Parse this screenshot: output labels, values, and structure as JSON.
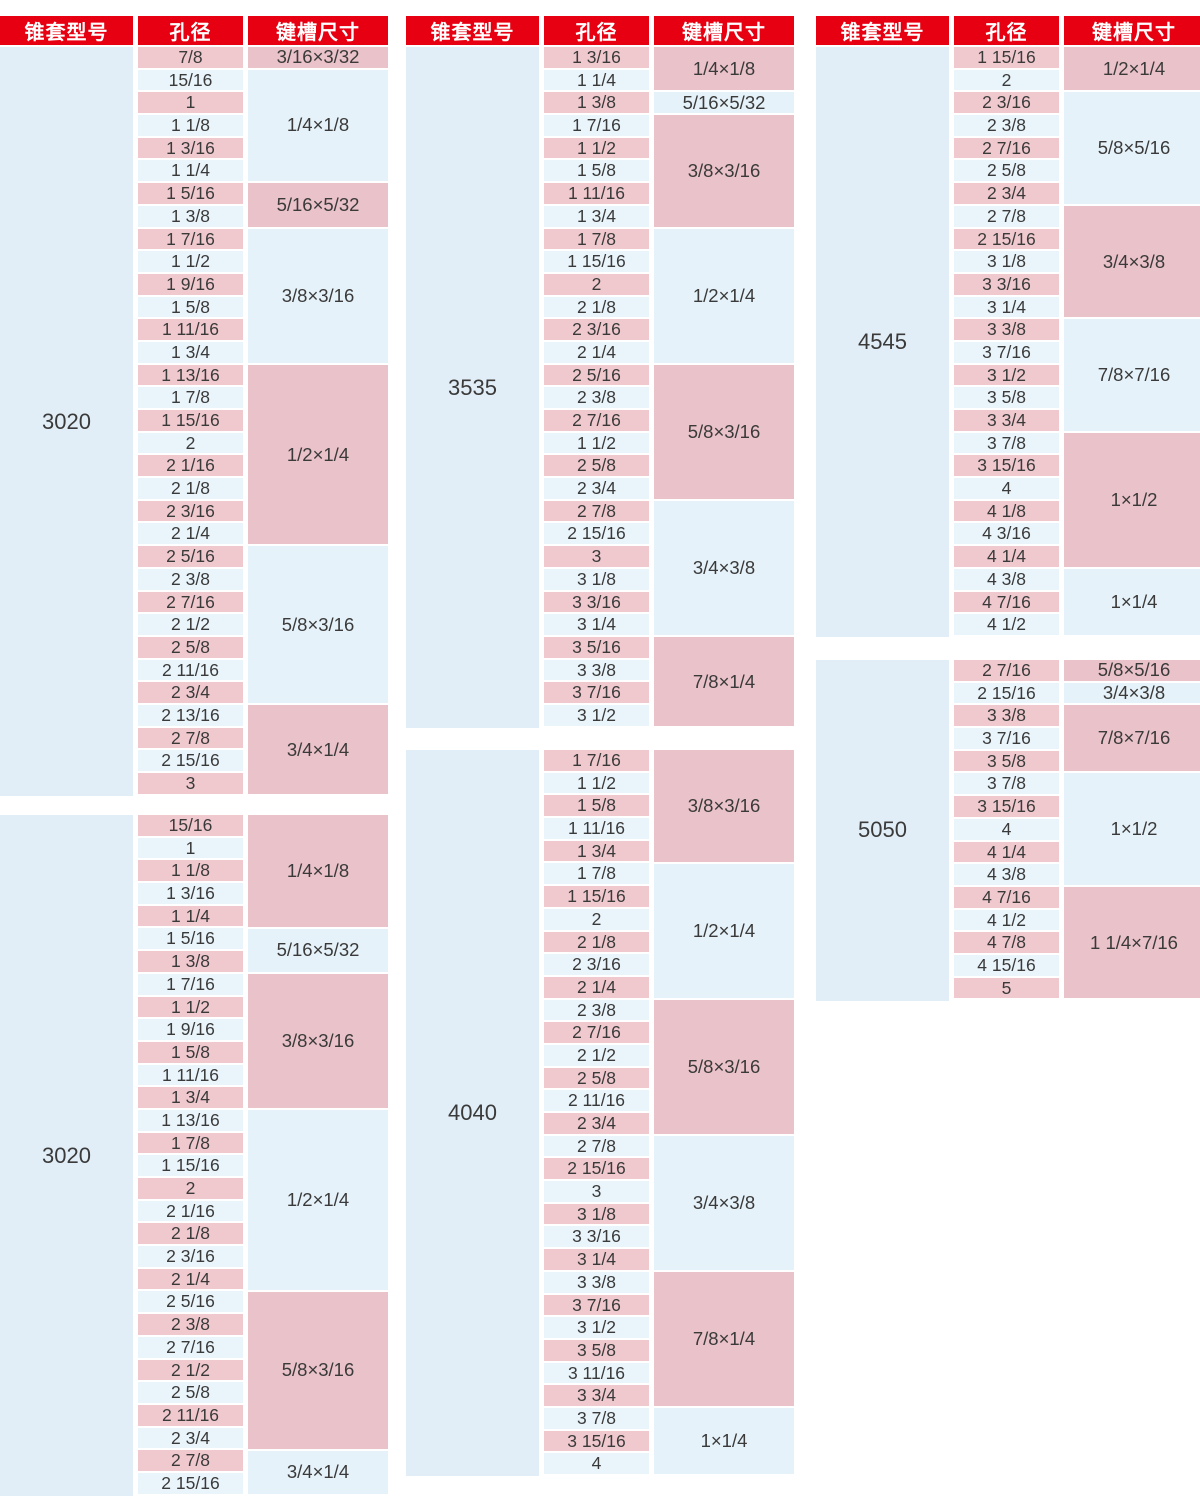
{
  "colors": {
    "page_bg": "#ffffff",
    "header_bg": "#e60012",
    "header_text": "#ffffff",
    "row_pink": "#f0c9ce",
    "row_blue": "#e9f4fb",
    "key_pink": "#eac2c9",
    "key_blue": "#e6f2f9",
    "model_bg": "#e2eef7",
    "text": "#3a3a3a"
  },
  "header_labels": {
    "model": "锥套型号",
    "bore": "孔径",
    "keyway": "键槽尺寸"
  },
  "columns": [
    {
      "tables": [
        {
          "model": "3020",
          "header": true,
          "groups": [
            {
              "keyway": "3/16×3/32",
              "bores": [
                "7/8"
              ]
            },
            {
              "keyway": "1/4×1/8",
              "bores": [
                "15/16",
                "1",
                "1 1/8",
                "1 3/16",
                "1 1/4"
              ]
            },
            {
              "keyway": "5/16×5/32",
              "bores": [
                "1 5/16",
                "1 3/8"
              ]
            },
            {
              "keyway": "3/8×3/16",
              "bores": [
                "1 7/16",
                "1 1/2",
                "1 9/16",
                "1 5/8",
                "1 11/16",
                "1 3/4"
              ]
            },
            {
              "keyway": "1/2×1/4",
              "bores": [
                "1 13/16",
                "1 7/8",
                "1 15/16",
                "2",
                "2 1/16",
                "2 1/8",
                "2 3/16",
                "2 1/4"
              ]
            },
            {
              "keyway": "5/8×3/16",
              "bores": [
                "2 5/16",
                "2 3/8",
                "2 7/16",
                "2 1/2",
                "2 5/8",
                "2 11/16",
                "2 3/4"
              ]
            },
            {
              "keyway": "3/4×1/4",
              "bores": [
                "2 13/16",
                "2 7/8",
                "2 15/16",
                "3"
              ]
            }
          ]
        },
        {
          "model": "3020",
          "header": false,
          "groups": [
            {
              "keyway": "1/4×1/8",
              "bores": [
                "15/16",
                "1",
                "1 1/8",
                "1 3/16",
                "1 1/4"
              ]
            },
            {
              "keyway": "5/16×5/32",
              "bores": [
                "1 5/16",
                "1 3/8"
              ]
            },
            {
              "keyway": "3/8×3/16",
              "bores": [
                "1 7/16",
                "1 1/2",
                "1 9/16",
                "1 5/8",
                "1 11/16",
                "1 3/4"
              ]
            },
            {
              "keyway": "1/2×1/4",
              "bores": [
                "1 13/16",
                "1 7/8",
                "1 15/16",
                "2",
                "2 1/16",
                "2 1/8",
                "2 3/16",
                "2 1/4"
              ]
            },
            {
              "keyway": "5/8×3/16",
              "bores": [
                "2 5/16",
                "2 3/8",
                "2 7/16",
                "2 1/2",
                "2 5/8",
                "2 11/16",
                "2 3/4"
              ]
            },
            {
              "keyway": "3/4×1/4",
              "bores": [
                "2 7/8",
                "2 15/16"
              ]
            }
          ]
        }
      ]
    },
    {
      "tables": [
        {
          "model": "3535",
          "header": true,
          "groups": [
            {
              "keyway": "1/4×1/8",
              "bores": [
                "1 3/16",
                "1 1/4"
              ]
            },
            {
              "keyway": "5/16×5/32",
              "bores": [
                "1 3/8"
              ]
            },
            {
              "keyway": "3/8×3/16",
              "bores": [
                "1 7/16",
                "1 1/2",
                "1 5/8",
                "1 11/16",
                "1 3/4"
              ]
            },
            {
              "keyway": "1/2×1/4",
              "bores": [
                "1 7/8",
                "1 15/16",
                "2",
                "2 1/8",
                "2 3/16",
                "2 1/4"
              ]
            },
            {
              "keyway": "5/8×3/16",
              "bores": [
                "2 5/16",
                "2 3/8",
                "2 7/16",
                "1 1/2",
                "2 5/8",
                "2 3/4"
              ]
            },
            {
              "keyway": "3/4×3/8",
              "bores": [
                "2 7/8",
                "2 15/16",
                "3",
                "3 1/8",
                "3 3/16",
                "3 1/4"
              ]
            },
            {
              "keyway": "7/8×1/4",
              "bores": [
                "3 5/16",
                "3 3/8",
                "3 7/16",
                "3 1/2"
              ]
            }
          ]
        },
        {
          "model": "4040",
          "header": false,
          "groups": [
            {
              "keyway": "3/8×3/16",
              "bores": [
                "1 7/16",
                "1 1/2",
                "1 5/8",
                "1 11/16",
                "1 3/4"
              ]
            },
            {
              "keyway": "1/2×1/4",
              "bores": [
                "1 7/8",
                "1 15/16",
                "2",
                "2 1/8",
                "2 3/16",
                "2 1/4"
              ]
            },
            {
              "keyway": "5/8×3/16",
              "bores": [
                "2 3/8",
                "2 7/16",
                "2 1/2",
                "2 5/8",
                "2 11/16",
                "2 3/4"
              ]
            },
            {
              "keyway": "3/4×3/8",
              "bores": [
                "2 7/8",
                "2 15/16",
                "3",
                "3 1/8",
                "3 3/16",
                "3 1/4"
              ]
            },
            {
              "keyway": "7/8×1/4",
              "bores": [
                "3 3/8",
                "3 7/16",
                "3 1/2",
                "3 5/8",
                "3 11/16",
                "3 3/4"
              ]
            },
            {
              "keyway": "1×1/4",
              "bores": [
                "3 7/8",
                "3 15/16",
                "4"
              ]
            }
          ]
        }
      ]
    },
    {
      "tables": [
        {
          "model": "4545",
          "header": true,
          "groups": [
            {
              "keyway": "1/2×1/4",
              "bores": [
                "1 15/16",
                "2"
              ]
            },
            {
              "keyway": "5/8×5/16",
              "bores": [
                "2 3/16",
                "2 3/8",
                "2 7/16",
                "2 5/8",
                "2 3/4"
              ]
            },
            {
              "keyway": "3/4×3/8",
              "bores": [
                "2 7/8",
                "2 15/16",
                "3 1/8",
                "3 3/16",
                "3 1/4"
              ]
            },
            {
              "keyway": "7/8×7/16",
              "bores": [
                "3 3/8",
                "3 7/16",
                "3 1/2",
                "3 5/8",
                "3 3/4"
              ]
            },
            {
              "keyway": "1×1/2",
              "bores": [
                "3 7/8",
                "3 15/16",
                "4",
                "4 1/8",
                "4 3/16",
                "4 1/4"
              ]
            },
            {
              "keyway": "1×1/4",
              "bores": [
                "4 3/8",
                "4 7/16",
                "4 1/2"
              ]
            }
          ]
        },
        {
          "model": "5050",
          "header": false,
          "groups": [
            {
              "keyway": "5/8×5/16",
              "bores": [
                "2 7/16"
              ]
            },
            {
              "keyway": "3/4×3/8",
              "bores": [
                "2 15/16"
              ]
            },
            {
              "keyway": "7/8×7/16",
              "bores": [
                "3 3/8",
                "3 7/16",
                "3 5/8"
              ]
            },
            {
              "keyway": "1×1/2",
              "bores": [
                "3 7/8",
                "3 15/16",
                "4",
                "4 1/4",
                "4 3/8"
              ]
            },
            {
              "keyway": "1 1/4×7/16",
              "bores": [
                "4 7/16",
                "4 1/2",
                "4 7/8",
                "4 15/16",
                "5"
              ]
            }
          ]
        }
      ]
    }
  ]
}
